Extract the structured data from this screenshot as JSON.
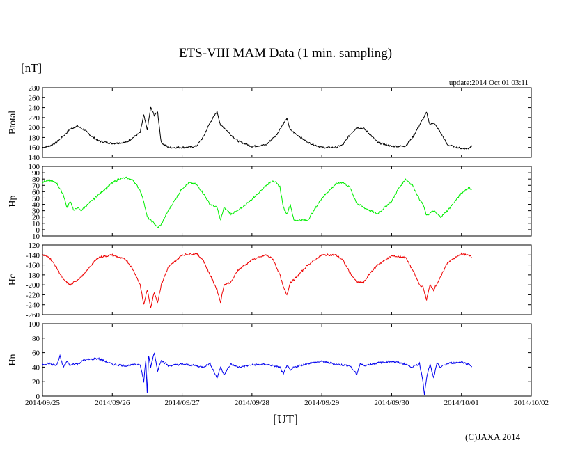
{
  "title": "ETS-VIII MAM Data (1 min. sampling)",
  "unit_label": "[nT]",
  "update_text": "update:2014 Oct 01 03:11",
  "x_unit_label": "[UT]",
  "credit": "(C)JAXA 2014",
  "chart_data": [
    {
      "type": "line",
      "ylabel": "Btotal",
      "color": "#000000",
      "ylim": [
        140,
        280
      ],
      "yticks": [
        140,
        160,
        180,
        200,
        220,
        240,
        260,
        280
      ],
      "x_ticks": [
        "2014/09/25",
        "2014/09/26",
        "2014/09/27",
        "2014/09/28",
        "2014/09/29",
        "2014/09/30",
        "2014/10/01",
        "2014/10/02"
      ],
      "x_range_days": [
        0,
        7
      ],
      "x": [
        0,
        0.1,
        0.2,
        0.3,
        0.4,
        0.5,
        0.6,
        0.7,
        0.8,
        1.0,
        1.2,
        1.4,
        1.45,
        1.5,
        1.55,
        1.6,
        1.65,
        1.7,
        1.8,
        2.0,
        2.2,
        2.3,
        2.4,
        2.5,
        2.55,
        2.6,
        2.7,
        2.8,
        3.0,
        3.2,
        3.35,
        3.45,
        3.5,
        3.55,
        3.6,
        3.8,
        4.0,
        4.2,
        4.3,
        4.4,
        4.5,
        4.6,
        4.7,
        4.8,
        5.0,
        5.2,
        5.3,
        5.4,
        5.5,
        5.55,
        5.6,
        5.7,
        5.8,
        6.0,
        6.1,
        6.15
      ],
      "y": [
        160,
        163,
        170,
        183,
        197,
        203,
        195,
        183,
        173,
        168,
        170,
        190,
        225,
        195,
        240,
        225,
        230,
        170,
        160,
        160,
        162,
        180,
        210,
        232,
        205,
        200,
        185,
        173,
        162,
        165,
        185,
        208,
        218,
        195,
        190,
        170,
        160,
        160,
        165,
        185,
        200,
        198,
        185,
        170,
        162,
        163,
        180,
        205,
        230,
        205,
        210,
        190,
        165,
        158,
        158,
        164
      ]
    },
    {
      "type": "line",
      "ylabel": "Hp",
      "color": "#00ee00",
      "ylim": [
        -10,
        100
      ],
      "yticks": [
        -10,
        0,
        10,
        20,
        30,
        40,
        50,
        60,
        70,
        80,
        90,
        100
      ],
      "x": [
        0,
        0.1,
        0.2,
        0.3,
        0.35,
        0.4,
        0.45,
        0.5,
        0.55,
        0.6,
        0.8,
        1.0,
        1.1,
        1.2,
        1.3,
        1.4,
        1.45,
        1.5,
        1.55,
        1.6,
        1.65,
        1.7,
        1.8,
        2.0,
        2.1,
        2.2,
        2.3,
        2.4,
        2.5,
        2.55,
        2.6,
        2.7,
        2.8,
        3.0,
        3.2,
        3.3,
        3.4,
        3.45,
        3.5,
        3.55,
        3.6,
        3.8,
        4.0,
        4.2,
        4.3,
        4.4,
        4.5,
        4.6,
        4.8,
        5.0,
        5.1,
        5.2,
        5.3,
        5.4,
        5.45,
        5.5,
        5.6,
        5.7,
        5.8,
        6.0,
        6.1,
        6.15
      ],
      "y": [
        75,
        78,
        74,
        55,
        35,
        45,
        30,
        35,
        30,
        35,
        55,
        74,
        80,
        82,
        78,
        62,
        45,
        20,
        15,
        10,
        3,
        8,
        30,
        65,
        74,
        72,
        58,
        40,
        35,
        15,
        35,
        25,
        30,
        48,
        70,
        78,
        68,
        35,
        25,
        40,
        15,
        15,
        50,
        72,
        75,
        67,
        42,
        35,
        25,
        45,
        65,
        80,
        70,
        48,
        40,
        22,
        30,
        20,
        30,
        58,
        66,
        64
      ]
    },
    {
      "type": "line",
      "ylabel": "Hc",
      "color": "#ee0000",
      "ylim": [
        -260,
        -120
      ],
      "yticks": [
        -260,
        -240,
        -220,
        -200,
        -180,
        -160,
        -140,
        -120
      ],
      "x": [
        0,
        0.1,
        0.2,
        0.3,
        0.4,
        0.5,
        0.6,
        0.7,
        0.8,
        1.0,
        1.2,
        1.3,
        1.4,
        1.45,
        1.5,
        1.55,
        1.6,
        1.65,
        1.7,
        1.8,
        2.0,
        2.2,
        2.3,
        2.4,
        2.5,
        2.55,
        2.6,
        2.7,
        2.8,
        3.0,
        3.2,
        3.3,
        3.4,
        3.45,
        3.5,
        3.55,
        3.6,
        3.8,
        4.0,
        4.2,
        4.3,
        4.4,
        4.5,
        4.6,
        4.7,
        4.8,
        5.0,
        5.2,
        5.3,
        5.4,
        5.45,
        5.5,
        5.55,
        5.6,
        5.7,
        5.8,
        6.0,
        6.1,
        6.15
      ],
      "y": [
        -140,
        -145,
        -165,
        -190,
        -200,
        -190,
        -178,
        -160,
        -145,
        -140,
        -150,
        -170,
        -200,
        -240,
        -210,
        -245,
        -215,
        -235,
        -200,
        -165,
        -140,
        -137,
        -150,
        -180,
        -210,
        -235,
        -200,
        -195,
        -170,
        -150,
        -140,
        -148,
        -180,
        -205,
        -220,
        -195,
        -190,
        -160,
        -140,
        -140,
        -150,
        -175,
        -195,
        -195,
        -175,
        -160,
        -142,
        -145,
        -170,
        -200,
        -205,
        -230,
        -200,
        -210,
        -185,
        -155,
        -138,
        -140,
        -145
      ]
    },
    {
      "type": "line",
      "ylabel": "Hn",
      "color": "#0000ee",
      "ylim": [
        0,
        100
      ],
      "yticks": [
        0,
        20,
        40,
        60,
        80,
        100
      ],
      "x": [
        0,
        0.1,
        0.2,
        0.25,
        0.3,
        0.35,
        0.4,
        0.45,
        0.5,
        0.6,
        0.8,
        1.0,
        1.2,
        1.4,
        1.45,
        1.48,
        1.5,
        1.52,
        1.55,
        1.6,
        1.65,
        1.7,
        1.8,
        2.0,
        2.2,
        2.3,
        2.4,
        2.5,
        2.55,
        2.6,
        2.7,
        2.8,
        3.0,
        3.2,
        3.4,
        3.45,
        3.5,
        3.55,
        3.6,
        3.8,
        4.0,
        4.2,
        4.4,
        4.5,
        4.55,
        4.6,
        4.8,
        5.0,
        5.2,
        5.3,
        5.4,
        5.45,
        5.47,
        5.5,
        5.55,
        5.6,
        5.65,
        5.7,
        5.8,
        6.0,
        6.1,
        6.15
      ],
      "y": [
        44,
        45,
        42,
        55,
        40,
        48,
        42,
        45,
        44,
        50,
        52,
        44,
        42,
        44,
        20,
        50,
        5,
        55,
        40,
        60,
        35,
        50,
        42,
        44,
        42,
        40,
        45,
        25,
        40,
        30,
        44,
        40,
        43,
        44,
        40,
        30,
        43,
        35,
        40,
        45,
        48,
        44,
        42,
        30,
        45,
        42,
        46,
        48,
        44,
        40,
        45,
        20,
        2,
        25,
        44,
        25,
        45,
        40,
        45,
        47,
        44,
        41
      ]
    }
  ]
}
